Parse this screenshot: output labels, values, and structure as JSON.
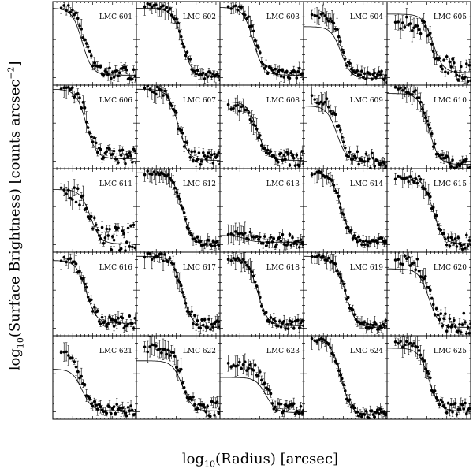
{
  "chart_data": {
    "type": "scatter",
    "layout": "small-multiples",
    "xlabel_prefix": "log",
    "xlabel_sub": "10",
    "xlabel_rest": "(Radius) [arcsec]",
    "ylabel_prefix": "log",
    "ylabel_sub": "10",
    "ylabel_rest": "(Surface Brightness) [counts arcsec",
    "ylabel_sup": "−2",
    "ylabel_close": "]",
    "grid": false,
    "panels": [
      {
        "label": "LMC 601",
        "ctop": 0.92,
        "cflat": 0.12,
        "cdrop": 0.35,
        "ptop": 0.95,
        "pflat": 0.14,
        "pdrop": 0.38,
        "scatter": 0.05
      },
      {
        "label": "LMC 602",
        "ctop": 0.92,
        "cflat": 0.1,
        "cdrop": 0.55,
        "ptop": 0.95,
        "pflat": 0.12,
        "pdrop": 0.55,
        "scatter": 0.04
      },
      {
        "label": "LMC 603",
        "ctop": 0.93,
        "cflat": 0.12,
        "cdrop": 0.4,
        "ptop": 0.95,
        "pflat": 0.14,
        "pdrop": 0.42,
        "scatter": 0.05
      },
      {
        "label": "LMC 604",
        "ctop": 0.7,
        "cflat": 0.08,
        "cdrop": 0.45,
        "ptop": 0.85,
        "pflat": 0.1,
        "pdrop": 0.45,
        "scatter": 0.05
      },
      {
        "label": "LMC 605",
        "ctop": 0.85,
        "cflat": 0.15,
        "cdrop": 0.55,
        "ptop": 0.75,
        "pflat": 0.18,
        "pdrop": 0.55,
        "scatter": 0.1
      },
      {
        "label": "LMC 606",
        "ctop": 0.95,
        "cflat": 0.12,
        "cdrop": 0.4,
        "ptop": 0.95,
        "pflat": 0.15,
        "pdrop": 0.42,
        "scatter": 0.07
      },
      {
        "label": "LMC 607",
        "ctop": 0.95,
        "cflat": 0.1,
        "cdrop": 0.5,
        "ptop": 0.95,
        "pflat": 0.12,
        "pdrop": 0.5,
        "scatter": 0.06
      },
      {
        "label": "LMC 608",
        "ctop": 0.8,
        "cflat": 0.1,
        "cdrop": 0.45,
        "ptop": 0.75,
        "pflat": 0.12,
        "pdrop": 0.45,
        "scatter": 0.06
      },
      {
        "label": "LMC 609",
        "ctop": 0.75,
        "cflat": 0.08,
        "cdrop": 0.4,
        "ptop": 0.85,
        "pflat": 0.1,
        "pdrop": 0.42,
        "scatter": 0.07
      },
      {
        "label": "LMC 610",
        "ctop": 0.9,
        "cflat": 0.05,
        "cdrop": 0.5,
        "ptop": 0.95,
        "pflat": 0.06,
        "pdrop": 0.5,
        "scatter": 0.05
      },
      {
        "label": "LMC 611",
        "ctop": 0.75,
        "cflat": 0.1,
        "cdrop": 0.45,
        "ptop": 0.7,
        "pflat": 0.15,
        "pdrop": 0.45,
        "scatter": 0.12
      },
      {
        "label": "LMC 612",
        "ctop": 0.95,
        "cflat": 0.08,
        "cdrop": 0.55,
        "ptop": 0.95,
        "pflat": 0.1,
        "pdrop": 0.55,
        "scatter": 0.03
      },
      {
        "label": "LMC 613",
        "ctop": 0.2,
        "cflat": 0.12,
        "cdrop": 0.3,
        "ptop": 0.25,
        "pflat": 0.13,
        "pdrop": 0.35,
        "scatter": 0.06
      },
      {
        "label": "LMC 614",
        "ctop": 0.95,
        "cflat": 0.12,
        "cdrop": 0.45,
        "ptop": 0.95,
        "pflat": 0.13,
        "pdrop": 0.45,
        "scatter": 0.04
      },
      {
        "label": "LMC 615",
        "ctop": 0.9,
        "cflat": 0.1,
        "cdrop": 0.55,
        "ptop": 0.9,
        "pflat": 0.12,
        "pdrop": 0.55,
        "scatter": 0.06
      },
      {
        "label": "LMC 616",
        "ctop": 0.9,
        "cflat": 0.15,
        "cdrop": 0.4,
        "ptop": 0.92,
        "pflat": 0.17,
        "pdrop": 0.4,
        "scatter": 0.06
      },
      {
        "label": "LMC 617",
        "ctop": 0.95,
        "cflat": 0.1,
        "cdrop": 0.55,
        "ptop": 0.95,
        "pflat": 0.12,
        "pdrop": 0.55,
        "scatter": 0.05
      },
      {
        "label": "LMC 618",
        "ctop": 0.93,
        "cflat": 0.12,
        "cdrop": 0.45,
        "ptop": 0.92,
        "pflat": 0.13,
        "pdrop": 0.45,
        "scatter": 0.04
      },
      {
        "label": "LMC 619",
        "ctop": 0.95,
        "cflat": 0.1,
        "cdrop": 0.5,
        "ptop": 0.95,
        "pflat": 0.12,
        "pdrop": 0.5,
        "scatter": 0.04
      },
      {
        "label": "LMC 620",
        "ctop": 0.8,
        "cflat": 0.1,
        "cdrop": 0.5,
        "ptop": 0.9,
        "pflat": 0.15,
        "pdrop": 0.5,
        "scatter": 0.09
      },
      {
        "label": "LMC 621",
        "ctop": 0.6,
        "cflat": 0.1,
        "cdrop": 0.35,
        "ptop": 0.8,
        "pflat": 0.11,
        "pdrop": 0.35,
        "scatter": 0.05
      },
      {
        "label": "LMC 622",
        "ctop": 0.7,
        "cflat": 0.1,
        "cdrop": 0.55,
        "ptop": 0.85,
        "pflat": 0.12,
        "pdrop": 0.55,
        "scatter": 0.06
      },
      {
        "label": "LMC 623",
        "ctop": 0.5,
        "cflat": 0.08,
        "cdrop": 0.55,
        "ptop": 0.65,
        "pflat": 0.1,
        "pdrop": 0.55,
        "scatter": 0.06
      },
      {
        "label": "LMC 624",
        "ctop": 0.95,
        "cflat": 0.05,
        "cdrop": 0.45,
        "ptop": 0.95,
        "pflat": 0.06,
        "pdrop": 0.45,
        "scatter": 0.04
      },
      {
        "label": "LMC 625",
        "ctop": 0.85,
        "cflat": 0.1,
        "cdrop": 0.5,
        "ptop": 0.9,
        "pflat": 0.12,
        "pdrop": 0.5,
        "scatter": 0.05
      }
    ]
  }
}
